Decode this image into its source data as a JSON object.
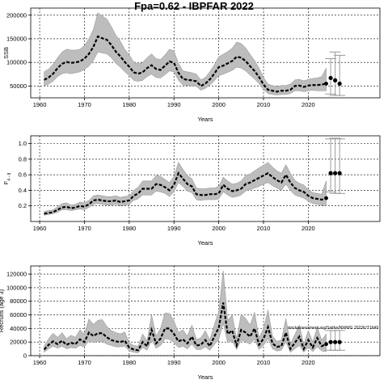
{
  "title": "Fpa=0.62 - IBPFAR 2022",
  "chart_data": [
    {
      "type": "line",
      "ylabel": "SSB",
      "xlabel": "Years",
      "xlim": [
        1958,
        2036
      ],
      "ylim": [
        25000,
        215000
      ],
      "xticks": [
        1960,
        1970,
        1980,
        1990,
        2000,
        2010,
        2020
      ],
      "xtick_labels": [
        "1960",
        "1970",
        "1980",
        "1990",
        "2000",
        "2010",
        "2020"
      ],
      "yticks": [
        50000,
        100000,
        150000,
        200000
      ],
      "ytick_labels": [
        "50000",
        "100000",
        "150000",
        "200000"
      ],
      "grid": true,
      "x": [
        1961,
        1962,
        1963,
        1964,
        1965,
        1966,
        1967,
        1968,
        1969,
        1970,
        1971,
        1972,
        1973,
        1974,
        1975,
        1976,
        1977,
        1978,
        1979,
        1980,
        1981,
        1982,
        1983,
        1984,
        1985,
        1986,
        1987,
        1988,
        1989,
        1990,
        1991,
        1992,
        1993,
        1994,
        1995,
        1996,
        1997,
        1998,
        1999,
        2000,
        2001,
        2002,
        2003,
        2004,
        2005,
        2006,
        2007,
        2008,
        2009,
        2010,
        2011,
        2012,
        2013,
        2014,
        2015,
        2016,
        2017,
        2018,
        2019,
        2020,
        2021,
        2022,
        2023,
        2024
      ],
      "y": [
        63000,
        68000,
        76000,
        88000,
        97000,
        101000,
        99000,
        100000,
        102000,
        108000,
        118000,
        133000,
        155000,
        151000,
        148000,
        137000,
        123000,
        113000,
        101000,
        91000,
        79000,
        76000,
        79000,
        88000,
        94000,
        86000,
        84000,
        93000,
        102000,
        99000,
        78000,
        65000,
        63000,
        62000,
        60000,
        50000,
        55000,
        64000,
        76000,
        90000,
        93000,
        98000,
        103000,
        112000,
        110000,
        103000,
        92000,
        82000,
        69000,
        53000,
        42000,
        40000,
        38000,
        40000,
        40000,
        42000,
        50000,
        51000,
        48000,
        51000,
        52000,
        52000,
        53000,
        55000
      ],
      "lower": [
        50000,
        54000,
        60000,
        70000,
        76000,
        78000,
        76000,
        78000,
        80000,
        85000,
        92000,
        104000,
        122000,
        120000,
        118000,
        110000,
        98000,
        90000,
        80000,
        72000,
        62000,
        60000,
        62000,
        70000,
        75000,
        68000,
        67000,
        74000,
        82000,
        80000,
        62000,
        52000,
        51000,
        50000,
        49000,
        41000,
        45000,
        52000,
        61000,
        72000,
        75000,
        79000,
        83000,
        90000,
        88000,
        82000,
        73000,
        65000,
        55000,
        42000,
        34000,
        32000,
        31000,
        32000,
        32000,
        34000,
        40000,
        40000,
        38000,
        40000,
        41000,
        40000,
        40000,
        40000
      ],
      "upper": [
        80000,
        86000,
        96000,
        110000,
        122000,
        128000,
        126000,
        126000,
        128000,
        136000,
        150000,
        170000,
        205000,
        198000,
        192000,
        176000,
        158000,
        145000,
        128000,
        116000,
        101000,
        97000,
        100000,
        110000,
        118000,
        108000,
        106000,
        116000,
        128000,
        124000,
        98000,
        82000,
        80000,
        78000,
        75000,
        63000,
        68000,
        80000,
        95000,
        112000,
        117000,
        123000,
        130000,
        143000,
        140000,
        131000,
        117000,
        104000,
        88000,
        68000,
        54000,
        51000,
        49000,
        51000,
        51000,
        54000,
        63000,
        64000,
        61000,
        64000,
        66000,
        67000,
        70000,
        88000
      ],
      "projection": {
        "x": [
          2025,
          2026,
          2027
        ],
        "y": [
          67000,
          62000,
          55000
        ],
        "lower": [
          33000,
          30000,
          30000
        ],
        "upper": [
          108000,
          122000,
          115000
        ]
      }
    },
    {
      "type": "line",
      "ylabel": "F",
      "ylabel_sub": "4 - 8",
      "xlabel": "Years",
      "xlim": [
        1958,
        2036
      ],
      "ylim": [
        0.0,
        1.1
      ],
      "xticks": [
        1960,
        1970,
        1980,
        1990,
        2000,
        2010,
        2020
      ],
      "xtick_labels": [
        "1960",
        "1970",
        "1980",
        "1990",
        "2000",
        "2010",
        "2020"
      ],
      "yticks": [
        0.2,
        0.4,
        0.6,
        0.8,
        1.0
      ],
      "ytick_labels": [
        "0.2",
        "0.4",
        "0.6",
        "0.8",
        "1.0"
      ],
      "grid": true,
      "x": [
        1961,
        1962,
        1963,
        1964,
        1965,
        1966,
        1967,
        1968,
        1969,
        1970,
        1971,
        1972,
        1973,
        1974,
        1975,
        1976,
        1977,
        1978,
        1979,
        1980,
        1981,
        1982,
        1983,
        1984,
        1985,
        1986,
        1987,
        1988,
        1989,
        1990,
        1991,
        1992,
        1993,
        1994,
        1995,
        1996,
        1997,
        1998,
        1999,
        2000,
        2001,
        2002,
        2003,
        2004,
        2005,
        2006,
        2007,
        2008,
        2009,
        2010,
        2011,
        2012,
        2013,
        2014,
        2015,
        2016,
        2017,
        2018,
        2019,
        2020,
        2021,
        2022,
        2023,
        2024
      ],
      "y": [
        0.1,
        0.11,
        0.12,
        0.15,
        0.18,
        0.19,
        0.17,
        0.18,
        0.2,
        0.19,
        0.22,
        0.27,
        0.28,
        0.27,
        0.26,
        0.26,
        0.27,
        0.25,
        0.26,
        0.27,
        0.33,
        0.36,
        0.42,
        0.42,
        0.42,
        0.48,
        0.47,
        0.44,
        0.4,
        0.47,
        0.62,
        0.55,
        0.48,
        0.45,
        0.35,
        0.34,
        0.34,
        0.35,
        0.35,
        0.36,
        0.47,
        0.42,
        0.39,
        0.4,
        0.42,
        0.48,
        0.5,
        0.53,
        0.56,
        0.59,
        0.62,
        0.57,
        0.53,
        0.5,
        0.6,
        0.5,
        0.43,
        0.4,
        0.38,
        0.33,
        0.3,
        0.29,
        0.28,
        0.3
      ],
      "lower": [
        0.08,
        0.09,
        0.1,
        0.12,
        0.15,
        0.15,
        0.14,
        0.15,
        0.16,
        0.15,
        0.18,
        0.22,
        0.23,
        0.22,
        0.21,
        0.21,
        0.22,
        0.2,
        0.21,
        0.22,
        0.27,
        0.29,
        0.34,
        0.34,
        0.34,
        0.39,
        0.38,
        0.36,
        0.32,
        0.38,
        0.5,
        0.45,
        0.39,
        0.37,
        0.28,
        0.27,
        0.28,
        0.28,
        0.28,
        0.29,
        0.38,
        0.34,
        0.31,
        0.32,
        0.34,
        0.39,
        0.41,
        0.43,
        0.45,
        0.48,
        0.5,
        0.46,
        0.43,
        0.4,
        0.48,
        0.4,
        0.34,
        0.32,
        0.3,
        0.26,
        0.23,
        0.22,
        0.21,
        0.2
      ],
      "upper": [
        0.13,
        0.14,
        0.15,
        0.19,
        0.23,
        0.24,
        0.21,
        0.22,
        0.25,
        0.24,
        0.27,
        0.33,
        0.34,
        0.33,
        0.32,
        0.32,
        0.33,
        0.31,
        0.32,
        0.33,
        0.4,
        0.44,
        0.52,
        0.52,
        0.52,
        0.59,
        0.58,
        0.54,
        0.5,
        0.58,
        0.76,
        0.67,
        0.59,
        0.55,
        0.43,
        0.42,
        0.42,
        0.43,
        0.43,
        0.45,
        0.57,
        0.52,
        0.48,
        0.49,
        0.52,
        0.59,
        0.61,
        0.65,
        0.69,
        0.72,
        0.76,
        0.7,
        0.65,
        0.62,
        0.73,
        0.62,
        0.53,
        0.49,
        0.47,
        0.41,
        0.37,
        0.36,
        0.35,
        0.52
      ],
      "projection": {
        "x": [
          2025,
          2026,
          2027
        ],
        "y": [
          0.62,
          0.62,
          0.62
        ],
        "lower": [
          0.38,
          0.36,
          0.36
        ],
        "upper": [
          1.06,
          1.07,
          1.06
        ]
      }
    },
    {
      "type": "line",
      "ylabel": "Recruits (age 3)",
      "xlabel": "Years",
      "xlim": [
        1958,
        2036
      ],
      "ylim": [
        0,
        132000
      ],
      "xticks": [
        1960,
        1970,
        1980,
        1990,
        2000,
        2010,
        2020
      ],
      "xtick_labels": [
        "1960",
        "1970",
        "1980",
        "1990",
        "2000",
        "2010",
        "2020"
      ],
      "yticks": [
        0,
        20000,
        40000,
        60000,
        80000,
        100000,
        120000
      ],
      "ytick_labels": [
        "0",
        "20000",
        "40000",
        "60000",
        "80000",
        "100000",
        "120000"
      ],
      "grid": true,
      "annotation": "stockassessment.org/Saithe/NWWG 2022K/T1649",
      "x": [
        1961,
        1962,
        1963,
        1964,
        1965,
        1966,
        1967,
        1968,
        1969,
        1970,
        1971,
        1972,
        1973,
        1974,
        1975,
        1976,
        1977,
        1978,
        1979,
        1980,
        1981,
        1982,
        1983,
        1984,
        1985,
        1986,
        1987,
        1988,
        1989,
        1990,
        1991,
        1992,
        1993,
        1994,
        1995,
        1996,
        1997,
        1998,
        1999,
        2000,
        2001,
        2002,
        2003,
        2004,
        2005,
        2006,
        2007,
        2008,
        2009,
        2010,
        2011,
        2012,
        2013,
        2014,
        2015,
        2016,
        2017,
        2018,
        2019,
        2020,
        2021,
        2022,
        2023,
        2024
      ],
      "y": [
        9000,
        16000,
        21000,
        17000,
        22000,
        16000,
        19000,
        17000,
        24000,
        20000,
        34000,
        29000,
        33000,
        33000,
        27000,
        23000,
        21000,
        20000,
        22000,
        12000,
        9000,
        8000,
        20000,
        14000,
        38000,
        18000,
        25000,
        40000,
        40000,
        32000,
        21000,
        24000,
        18000,
        28000,
        15000,
        16000,
        23000,
        14000,
        28000,
        41000,
        78000,
        32000,
        37000,
        15000,
        38000,
        34000,
        28000,
        40000,
        16000,
        25000,
        42000,
        18000,
        13000,
        14000,
        34000,
        10000,
        19000,
        28000,
        10000,
        23000,
        12000,
        26000,
        14000,
        17000
      ],
      "lower": [
        5000,
        10000,
        14000,
        11000,
        14000,
        10000,
        12000,
        11000,
        15000,
        13000,
        22000,
        19000,
        21000,
        21000,
        17000,
        15000,
        13000,
        13000,
        14000,
        7000,
        5000,
        4000,
        12000,
        8000,
        23000,
        11000,
        15000,
        25000,
        24000,
        19000,
        12000,
        14000,
        10000,
        17000,
        9000,
        9000,
        13000,
        8000,
        16000,
        24000,
        48000,
        19000,
        22000,
        9000,
        23000,
        20000,
        17000,
        24000,
        9000,
        15000,
        25000,
        10000,
        7000,
        8000,
        20000,
        5000,
        10000,
        15000,
        5000,
        12000,
        6000,
        13000,
        7000,
        6000
      ],
      "upper": [
        14000,
        25000,
        33000,
        27000,
        34000,
        25000,
        30000,
        27000,
        38000,
        32000,
        54000,
        46000,
        52000,
        53000,
        43000,
        37000,
        34000,
        32000,
        35000,
        19000,
        15000,
        14000,
        32000,
        22000,
        60000,
        29000,
        40000,
        63000,
        62000,
        51000,
        34000,
        38000,
        29000,
        45000,
        24000,
        26000,
        37000,
        23000,
        45000,
        65000,
        125000,
        52000,
        60000,
        25000,
        61000,
        55000,
        45000,
        64000,
        26000,
        40000,
        67000,
        29000,
        21000,
        23000,
        55000,
        17000,
        31000,
        45000,
        17000,
        37000,
        20000,
        42000,
        23000,
        32000
      ],
      "projection": {
        "x": [
          2025,
          2026,
          2027
        ],
        "y": [
          20000,
          20000,
          20000
        ],
        "lower": [
          8000,
          8000,
          8000
        ],
        "upper": [
          37000,
          37000,
          37000
        ]
      }
    }
  ]
}
